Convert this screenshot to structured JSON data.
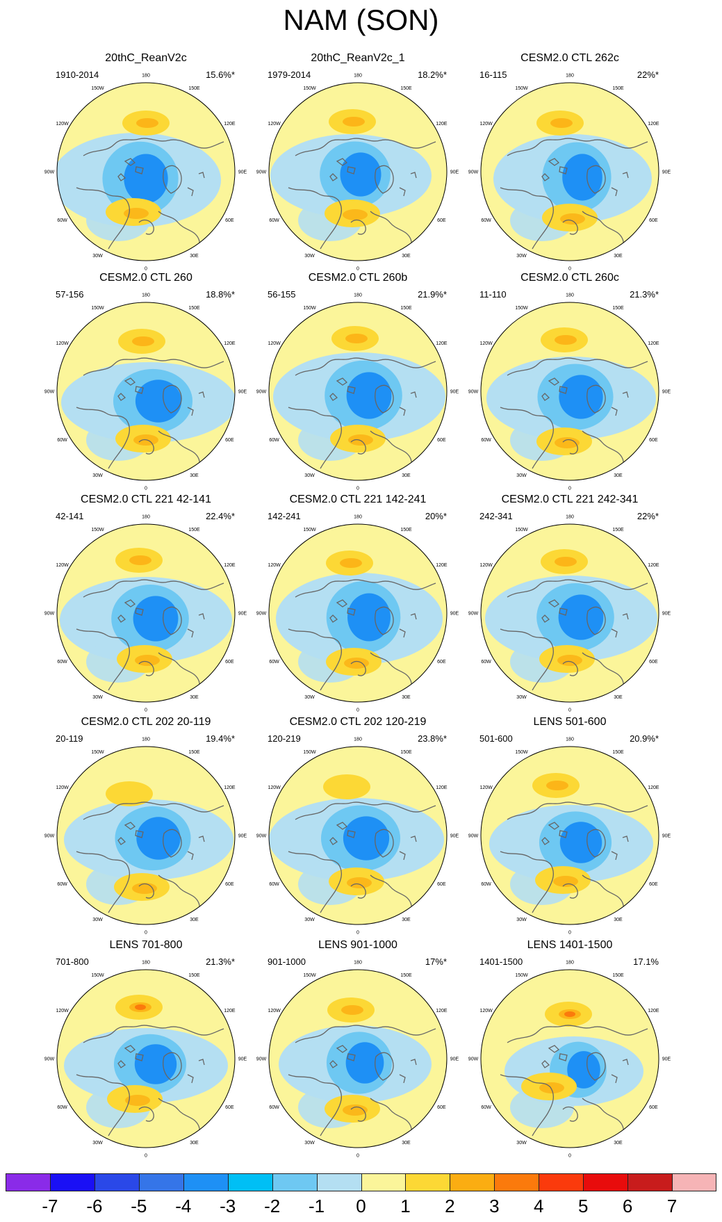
{
  "title": "NAM (SON)",
  "lon_labels": [
    "180",
    "150E",
    "120E",
    "90E",
    "60E",
    "30E",
    "0",
    "30W",
    "60W",
    "90W",
    "120W",
    "150W"
  ],
  "panels": [
    {
      "title": "20thC_ReanV2c",
      "period": "1910-2014",
      "pct": "15.6%*"
    },
    {
      "title": "20thC_ReanV2c_1",
      "period": "1979-2014",
      "pct": "18.2%*"
    },
    {
      "title": "CESM2.0 CTL 262c",
      "period": "16-115",
      "pct": "22%*"
    },
    {
      "title": "CESM2.0 CTL 260",
      "period": "57-156",
      "pct": "18.8%*"
    },
    {
      "title": "CESM2.0 CTL 260b",
      "period": "56-155",
      "pct": "21.9%*"
    },
    {
      "title": "CESM2.0 CTL 260c",
      "period": "11-110",
      "pct": "21.3%*"
    },
    {
      "title": "CESM2.0 CTL 221 42-141",
      "period": "42-141",
      "pct": "22.4%*"
    },
    {
      "title": "CESM2.0 CTL 221 142-241",
      "period": "142-241",
      "pct": "20%*"
    },
    {
      "title": "CESM2.0 CTL 221 242-341",
      "period": "242-341",
      "pct": "22%*"
    },
    {
      "title": "CESM2.0 CTL 202 20-119",
      "period": "20-119",
      "pct": "19.4%*"
    },
    {
      "title": "CESM2.0 CTL 202 120-219",
      "period": "120-219",
      "pct": "23.8%*"
    },
    {
      "title": "LENS 501-600",
      "period": "501-600",
      "pct": "20.9%*"
    },
    {
      "title": "LENS 701-800",
      "period": "701-800",
      "pct": "21.3%*"
    },
    {
      "title": "LENS 901-1000",
      "period": "901-1000",
      "pct": "17%*"
    },
    {
      "title": "LENS 1401-1500",
      "period": "1401-1500",
      "pct": "17.1%"
    }
  ],
  "colorbar": {
    "ticks": [
      "-7",
      "-6",
      "-5",
      "-4",
      "-3",
      "-2",
      "-1",
      "0",
      "1",
      "2",
      "3",
      "4",
      "5",
      "6",
      "7"
    ],
    "colors": [
      "#8a2be8",
      "#1a10f5",
      "#2a48e8",
      "#3575e8",
      "#1e90f5",
      "#00bff5",
      "#6ec8f2",
      "#b4dff2",
      "#fbf59a",
      "#fcd835",
      "#fbad12",
      "#fb7a0c",
      "#fb3a0c",
      "#e80c0c",
      "#c81c1c",
      "#f6b4b6"
    ]
  }
}
